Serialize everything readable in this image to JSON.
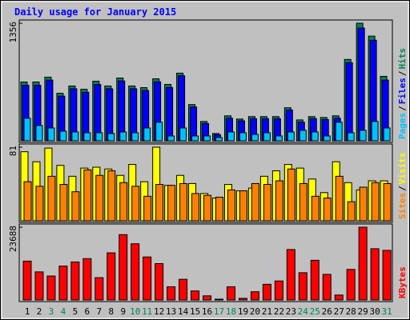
{
  "chart_data": [
    {
      "type": "bar",
      "title": "Daily usage for January 2015",
      "ylim": [
        0,
        1356
      ],
      "yticks": [
        1356
      ],
      "legend_separator": "/",
      "series": [
        {
          "name": "Hits",
          "color": "#00805c",
          "values": [
            678,
            678,
            734,
            548,
            632,
            594,
            687,
            632,
            724,
            632,
            613,
            715,
            650,
            780,
            418,
            223,
            84,
            288,
            251,
            279,
            279,
            279,
            381,
            241,
            279,
            269,
            288,
            938,
            1356,
            1207,
            743
          ]
        },
        {
          "name": "Files",
          "color": "#0000ff",
          "values": [
            640,
            640,
            700,
            515,
            600,
            560,
            650,
            600,
            690,
            600,
            580,
            680,
            615,
            750,
            390,
            200,
            70,
            260,
            230,
            255,
            255,
            255,
            355,
            215,
            255,
            245,
            260,
            900,
            1300,
            1160,
            700
          ]
        },
        {
          "name": "Pages",
          "color": "#00c0ff",
          "values": [
            260,
            176,
            148,
            111,
            102,
            93,
            93,
            84,
            102,
            93,
            148,
            214,
            56,
            148,
            56,
            56,
            37,
            102,
            93,
            74,
            93,
            56,
            102,
            121,
            102,
            56,
            214,
            93,
            121,
            223,
            148
          ]
        }
      ]
    },
    {
      "type": "bar",
      "ylim": [
        0,
        81
      ],
      "yticks": [
        81
      ],
      "legend_separator": "/",
      "series": [
        {
          "name": "Visits",
          "color": "#ffff00",
          "values": [
            76,
            65,
            80,
            61,
            49,
            58,
            59,
            57,
            50,
            62,
            43,
            81,
            39,
            50,
            41,
            30,
            25,
            40,
            33,
            36,
            49,
            55,
            62,
            58,
            46,
            31,
            65,
            42,
            34,
            44,
            44
          ]
        },
        {
          "name": "Sites",
          "color": "#ff8000",
          "values": [
            43,
            38,
            49,
            40,
            32,
            56,
            50,
            55,
            42,
            38,
            27,
            40,
            39,
            41,
            30,
            28,
            26,
            34,
            33,
            41,
            40,
            44,
            57,
            41,
            27,
            25,
            49,
            21,
            37,
            42,
            41
          ]
        }
      ]
    },
    {
      "type": "bar",
      "ylim": [
        0,
        23688
      ],
      "yticks": [
        23688
      ],
      "categories": [
        "1",
        "2",
        "3",
        "4",
        "5",
        "6",
        "7",
        "8",
        "9",
        "10",
        "11",
        "12",
        "13",
        "14",
        "15",
        "16",
        "17",
        "18",
        "19",
        "20",
        "21",
        "22",
        "23",
        "24",
        "25",
        "26",
        "27",
        "28",
        "29",
        "30",
        "31"
      ],
      "highlight": {
        "color": "#00805c",
        "indices": [
          2,
          3,
          9,
          10,
          16,
          17,
          23,
          24,
          30
        ]
      },
      "series": [
        {
          "name": "KBytes",
          "color": "#ff0000",
          "values": [
            12650,
            9150,
            7800,
            11040,
            12380,
            13460,
            7270,
            15340,
            21270,
            18300,
            14000,
            11840,
            4300,
            6730,
            2960,
            1350,
            270,
            4300,
            540,
            2690,
            5110,
            6190,
            16420,
            8880,
            12920,
            8340,
            1620,
            9960,
            23688,
            16690,
            16150
          ]
        }
      ]
    }
  ]
}
